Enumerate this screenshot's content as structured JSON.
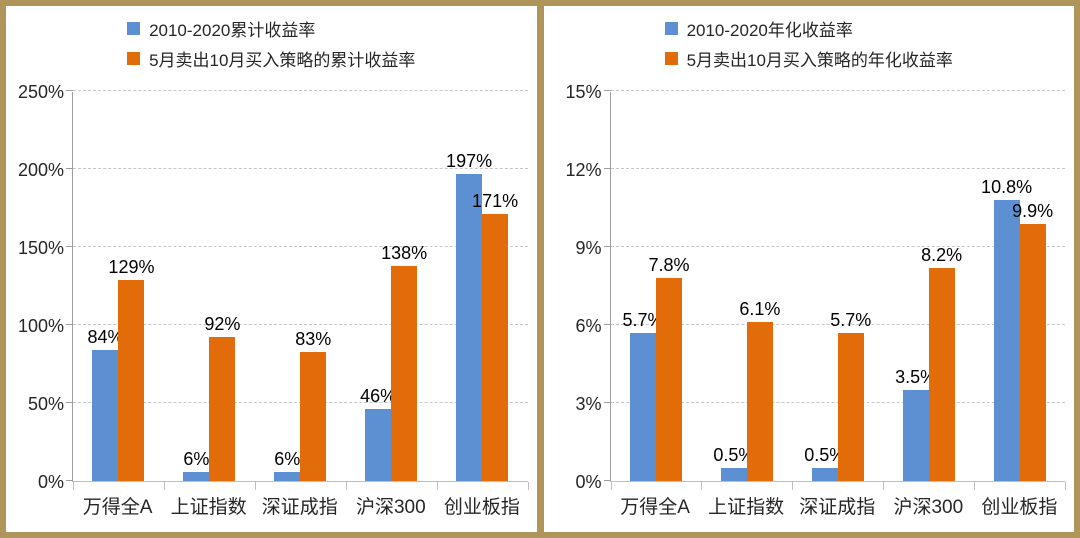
{
  "colors": {
    "frame": "#B0955A",
    "background": "#FFFFFF",
    "series_blue": "#5C90D2",
    "series_orange": "#E36C0A",
    "gridline": "#C6C6C6",
    "y_axis": "#9E9E9E",
    "x_axis": "#BFBFBF",
    "tick_text": "#262626",
    "data_label_text": "#000000"
  },
  "chart_data": [
    {
      "type": "bar",
      "title": "",
      "xlabel": "",
      "ylabel": "",
      "grid": true,
      "legend_position": "top-center",
      "categories": [
        "万得全A",
        "上证指数",
        "深证成指",
        "沪深300",
        "创业板指"
      ],
      "series": [
        {
          "name": "2010-2020累计收益率",
          "color": "#5C90D2",
          "values": [
            84,
            6,
            6,
            46,
            197
          ],
          "labels": [
            "84%",
            "6%",
            "6%",
            "46%",
            "197%"
          ]
        },
        {
          "name": "5月卖出10月买入策略的累计收益率",
          "color": "#E36C0A",
          "values": [
            129,
            92,
            83,
            138,
            171
          ],
          "labels": [
            "129%",
            "92%",
            "83%",
            "138%",
            "171%"
          ]
        }
      ],
      "ylim": [
        0,
        250
      ],
      "yticks": [
        {
          "v": 0,
          "label": "0%"
        },
        {
          "v": 50,
          "label": "50%"
        },
        {
          "v": 100,
          "label": "100%"
        },
        {
          "v": 150,
          "label": "150%"
        },
        {
          "v": 200,
          "label": "200%"
        },
        {
          "v": 250,
          "label": "250%"
        }
      ]
    },
    {
      "type": "bar",
      "title": "",
      "xlabel": "",
      "ylabel": "",
      "grid": true,
      "legend_position": "top-center",
      "categories": [
        "万得全A",
        "上证指数",
        "深证成指",
        "沪深300",
        "创业板指"
      ],
      "series": [
        {
          "name": "2010-2020年化收益率",
          "color": "#5C90D2",
          "values": [
            5.7,
            0.5,
            0.5,
            3.5,
            10.8
          ],
          "labels": [
            "5.7%",
            "0.5%",
            "0.5%",
            "3.5%",
            "10.8%"
          ]
        },
        {
          "name": "5月卖出10月买入策略的年化收益率",
          "color": "#E36C0A",
          "values": [
            7.8,
            6.1,
            5.7,
            8.2,
            9.9
          ],
          "labels": [
            "7.8%",
            "6.1%",
            "5.7%",
            "8.2%",
            "9.9%"
          ]
        }
      ],
      "ylim": [
        0,
        15
      ],
      "yticks": [
        {
          "v": 0,
          "label": "0%"
        },
        {
          "v": 3,
          "label": "3%"
        },
        {
          "v": 6,
          "label": "6%"
        },
        {
          "v": 9,
          "label": "9%"
        },
        {
          "v": 12,
          "label": "12%"
        },
        {
          "v": 15,
          "label": "15%"
        }
      ]
    }
  ]
}
